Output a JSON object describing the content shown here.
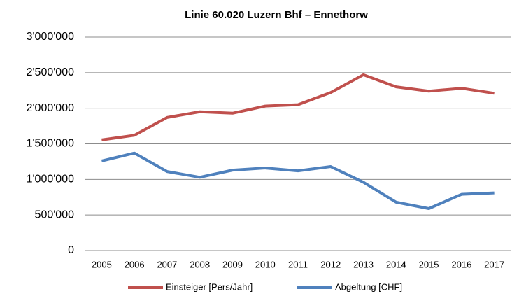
{
  "chart_data": {
    "type": "line",
    "title": "Linie 60.020 Luzern Bhf – Ennethorw",
    "categories": [
      "2005",
      "2006",
      "2007",
      "2008",
      "2009",
      "2010",
      "2011",
      "2012",
      "2013",
      "2014",
      "2015",
      "2016",
      "2017"
    ],
    "series": [
      {
        "name": "Einsteiger [Pers/Jahr]",
        "color": "#c0504d",
        "values": [
          1555000,
          1620000,
          1870000,
          1950000,
          1930000,
          2030000,
          2050000,
          2220000,
          2470000,
          2300000,
          2240000,
          2280000,
          2210000
        ]
      },
      {
        "name": "Abgeltung [CHF]",
        "color": "#4f81bd",
        "values": [
          1260000,
          1370000,
          1110000,
          1030000,
          1130000,
          1160000,
          1120000,
          1180000,
          960000,
          680000,
          590000,
          790000,
          810000
        ]
      }
    ],
    "ylim": [
      0,
      3000000
    ],
    "yticks": [
      0,
      {
        "value": 500000,
        "label": "500'000"
      },
      {
        "value": 1000000,
        "label": "1'000'000"
      },
      {
        "value": 1500000,
        "label": "1'500'000"
      },
      {
        "value": 2000000,
        "label": "2'000'000"
      },
      {
        "value": 2500000,
        "label": "2'500'000"
      },
      {
        "value": 3000000,
        "label": "3'000'000"
      }
    ],
    "grid": true,
    "legend": "bottom"
  }
}
